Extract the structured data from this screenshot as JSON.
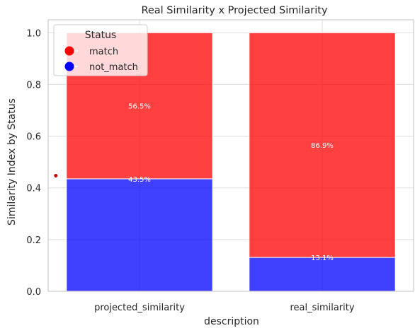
{
  "chart_data": {
    "type": "bar",
    "stacked": true,
    "title": "Real Similarity x Projected Similarity",
    "xlabel": "description",
    "ylabel": "Similarity Index by Status",
    "categories": [
      "projected_similarity",
      "real_similarity"
    ],
    "series": [
      {
        "name": "not_match",
        "color": "#0000ff",
        "values": [
          0.435,
          0.131
        ],
        "labels": [
          "43.5%",
          "13.1%"
        ]
      },
      {
        "name": "match",
        "color": "#ff0000",
        "values": [
          0.565,
          0.869
        ],
        "labels": [
          "56.5%",
          "86.9%"
        ]
      }
    ],
    "ylim": [
      0,
      1.05
    ],
    "yticks": [
      0.0,
      0.2,
      0.4,
      0.6,
      0.8,
      1.0
    ],
    "ytick_labels": [
      "0.0",
      "0.2",
      "0.4",
      "0.6",
      "0.8",
      "1.0"
    ],
    "grid": true,
    "legend": {
      "title": "Status",
      "placement": "top-left",
      "entries": [
        {
          "name": "match",
          "color": "#ff0000"
        },
        {
          "name": "not_match",
          "color": "#0000ff"
        }
      ]
    },
    "extra_point": {
      "x": "projected_similarity",
      "y": 0.447,
      "color": "#cc0000"
    }
  }
}
